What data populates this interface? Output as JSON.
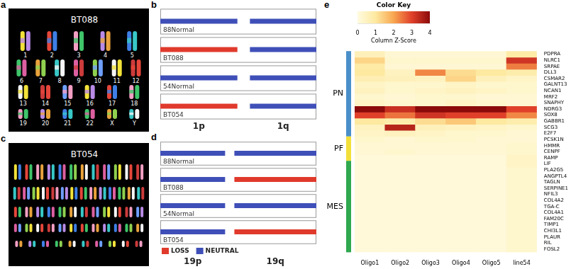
{
  "figure": {
    "panels": [
      {
        "panel": "a",
        "type": "karyotype",
        "title": "BT088",
        "chromosomes": [
          [
            "1",
            "2",
            "3",
            "4",
            "5"
          ],
          [
            "6",
            "7",
            "8",
            "9",
            "10",
            "11",
            "12"
          ],
          [
            "13",
            "14",
            "15",
            "16",
            "17",
            "18"
          ],
          [
            "19",
            "20",
            "21",
            "22",
            "X",
            "Y"
          ]
        ]
      },
      {
        "panel": "c",
        "type": "karyotype",
        "title": "BT054"
      }
    ]
  },
  "chart_data": [
    {
      "panel": "b",
      "type": "segment",
      "tick_labels": false,
      "xlim": [
        0,
        249
      ],
      "arms": [
        {
          "name": "1p",
          "start": 0,
          "end": 123
        },
        {
          "name": "1q",
          "start": 143,
          "end": 249
        }
      ],
      "tracks": [
        {
          "name": "88Normal",
          "segments": [
            {
              "state": "NEUTRAL",
              "start": 0,
              "end": 123
            },
            {
              "state": "NEUTRAL",
              "start": 143,
              "end": 249
            }
          ]
        },
        {
          "name": "BT088",
          "segments": [
            {
              "state": "LOSS",
              "start": 0,
              "end": 123
            },
            {
              "state": "NEUTRAL",
              "start": 143,
              "end": 249
            }
          ]
        },
        {
          "name": "54Normal",
          "segments": [
            {
              "state": "NEUTRAL",
              "start": 0,
              "end": 123
            },
            {
              "state": "NEUTRAL",
              "start": 143,
              "end": 249
            }
          ]
        },
        {
          "name": "BT054",
          "segments": [
            {
              "state": "LOSS",
              "start": 0,
              "end": 123
            },
            {
              "state": "NEUTRAL",
              "start": 143,
              "end": 249
            }
          ]
        }
      ]
    },
    {
      "panel": "d",
      "type": "segment",
      "tick_labels": false,
      "xlim": [
        0,
        59
      ],
      "legend": "bottom-left",
      "series": [
        {
          "name": "LOSS",
          "color": "#e03a2c"
        },
        {
          "name": "NEUTRAL",
          "color": "#3f4fb8"
        }
      ],
      "arms": [
        {
          "name": "19p",
          "start": 0,
          "end": 24.5
        },
        {
          "name": "19q",
          "start": 28,
          "end": 59
        }
      ],
      "tracks": [
        {
          "name": "88Normal",
          "segments": [
            {
              "state": "NEUTRAL",
              "start": 0,
              "end": 24.5
            },
            {
              "state": "NEUTRAL",
              "start": 28,
              "end": 59
            }
          ]
        },
        {
          "name": "BT088",
          "segments": [
            {
              "state": "NEUTRAL",
              "start": 0,
              "end": 24.5
            },
            {
              "state": "LOSS",
              "start": 28,
              "end": 59
            }
          ]
        },
        {
          "name": "54Normal",
          "segments": [
            {
              "state": "NEUTRAL",
              "start": 0,
              "end": 24.5
            },
            {
              "state": "NEUTRAL",
              "start": 28,
              "end": 59
            }
          ]
        },
        {
          "name": "BT054",
          "segments": [
            {
              "state": "NEUTRAL",
              "start": 0,
              "end": 24.5
            },
            {
              "state": "LOSS",
              "start": 28,
              "end": 59
            }
          ]
        }
      ]
    },
    {
      "panel": "e",
      "type": "heatmap",
      "categories": [
        "Oligo1",
        "Oligo2",
        "Oligo3",
        "Oligo4",
        "Oligo5",
        "line54"
      ],
      "colorbar": {
        "title": "Color Key",
        "label": "Column Z-Score",
        "range": [
          0,
          4
        ],
        "ticks": [
          0,
          1,
          2,
          3,
          4
        ]
      },
      "groups": [
        {
          "name": "PN",
          "color": "#4a8fc9",
          "genes": [
            "PDPRA",
            "NLRC1",
            "SRPAE",
            "DLL3",
            "CSMAR2",
            "GALNT13",
            "NCAN1",
            "MRF2",
            "SNAPHY",
            "NDRG3",
            "SOX8",
            "GABBR1",
            "SCG3",
            "E2F7"
          ]
        },
        {
          "name": "PF",
          "color": "#f2df3a",
          "genes": [
            "PCSK1N",
            "HMMR",
            "CENPF",
            "RAMP"
          ]
        },
        {
          "name": "MES",
          "color": "#2fa84f",
          "genes": [
            "LIF",
            "PLA2G5",
            "ANGPTL4",
            "TAGLN",
            "SERPINE1",
            "NFIL3",
            "COL4A2",
            "TGA-C",
            "COL4A1",
            "FAM20C",
            "TIMP1",
            "CHI3L1",
            "PLAUR",
            "RIL",
            "FOSL2"
          ]
        }
      ],
      "cells": [
        [
          0.6,
          0.2,
          0.2,
          0.2,
          0.2,
          0.9
        ],
        [
          1.3,
          0.3,
          0.3,
          0.3,
          0.3,
          3.2
        ],
        [
          0.9,
          0.2,
          0.2,
          0.2,
          0.2,
          2.4
        ],
        [
          1.0,
          0.5,
          2.3,
          1.2,
          1.0,
          0.8
        ],
        [
          0.7,
          0.6,
          0.5,
          1.3,
          0.6,
          0.4
        ],
        [
          0.4,
          0.3,
          0.3,
          0.4,
          0.3,
          0.3
        ],
        [
          0.5,
          0.3,
          0.4,
          0.5,
          0.4,
          0.3
        ],
        [
          0.3,
          0.2,
          0.3,
          0.3,
          0.2,
          0.2
        ],
        [
          0.4,
          0.3,
          0.3,
          0.4,
          0.3,
          0.2
        ],
        [
          4.0,
          3.3,
          4.0,
          4.0,
          4.0,
          3.0
        ],
        [
          3.0,
          2.5,
          3.2,
          3.0,
          3.0,
          2.3
        ],
        [
          1.0,
          0.8,
          1.2,
          1.5,
          1.0,
          0.8
        ],
        [
          0.5,
          3.5,
          0.6,
          0.5,
          0.4,
          0.3
        ],
        [
          0.4,
          0.5,
          0.4,
          0.3,
          0.3,
          0.2
        ],
        [
          0.3,
          0.2,
          0.3,
          0.3,
          0.2,
          0.2
        ],
        [
          0.2,
          0.2,
          0.2,
          0.2,
          0.2,
          0.3
        ],
        [
          0.2,
          0.3,
          0.2,
          0.2,
          0.2,
          0.3
        ],
        [
          0.1,
          0.1,
          0.1,
          0.1,
          0.1,
          0.4
        ],
        [
          0.1,
          0.1,
          0.1,
          0.1,
          0.1,
          0.4
        ],
        [
          0.1,
          0.1,
          0.1,
          0.1,
          0.1,
          0.3
        ],
        [
          0.1,
          0.1,
          0.1,
          0.1,
          0.1,
          0.3
        ],
        [
          0.1,
          0.1,
          0.1,
          0.1,
          0.1,
          0.3
        ],
        [
          0.1,
          0.1,
          0.1,
          0.1,
          0.1,
          0.3
        ],
        [
          0.1,
          0.1,
          0.1,
          0.1,
          0.1,
          0.3
        ],
        [
          0.1,
          0.1,
          0.1,
          0.1,
          0.1,
          0.3
        ],
        [
          0.1,
          0.1,
          0.1,
          0.1,
          0.1,
          0.3
        ],
        [
          0.1,
          0.1,
          0.1,
          0.1,
          0.1,
          0.3
        ],
        [
          0.1,
          0.1,
          0.1,
          0.1,
          0.1,
          0.3
        ],
        [
          0.1,
          0.1,
          0.1,
          0.1,
          0.1,
          0.3
        ],
        [
          0.1,
          0.1,
          0.1,
          0.1,
          0.1,
          0.3
        ],
        [
          0.1,
          0.1,
          0.1,
          0.1,
          0.1,
          0.3
        ],
        [
          0.1,
          0.1,
          0.1,
          0.1,
          0.1,
          0.3
        ],
        [
          0.1,
          0.1,
          0.1,
          0.1,
          0.1,
          0.3
        ]
      ]
    }
  ]
}
